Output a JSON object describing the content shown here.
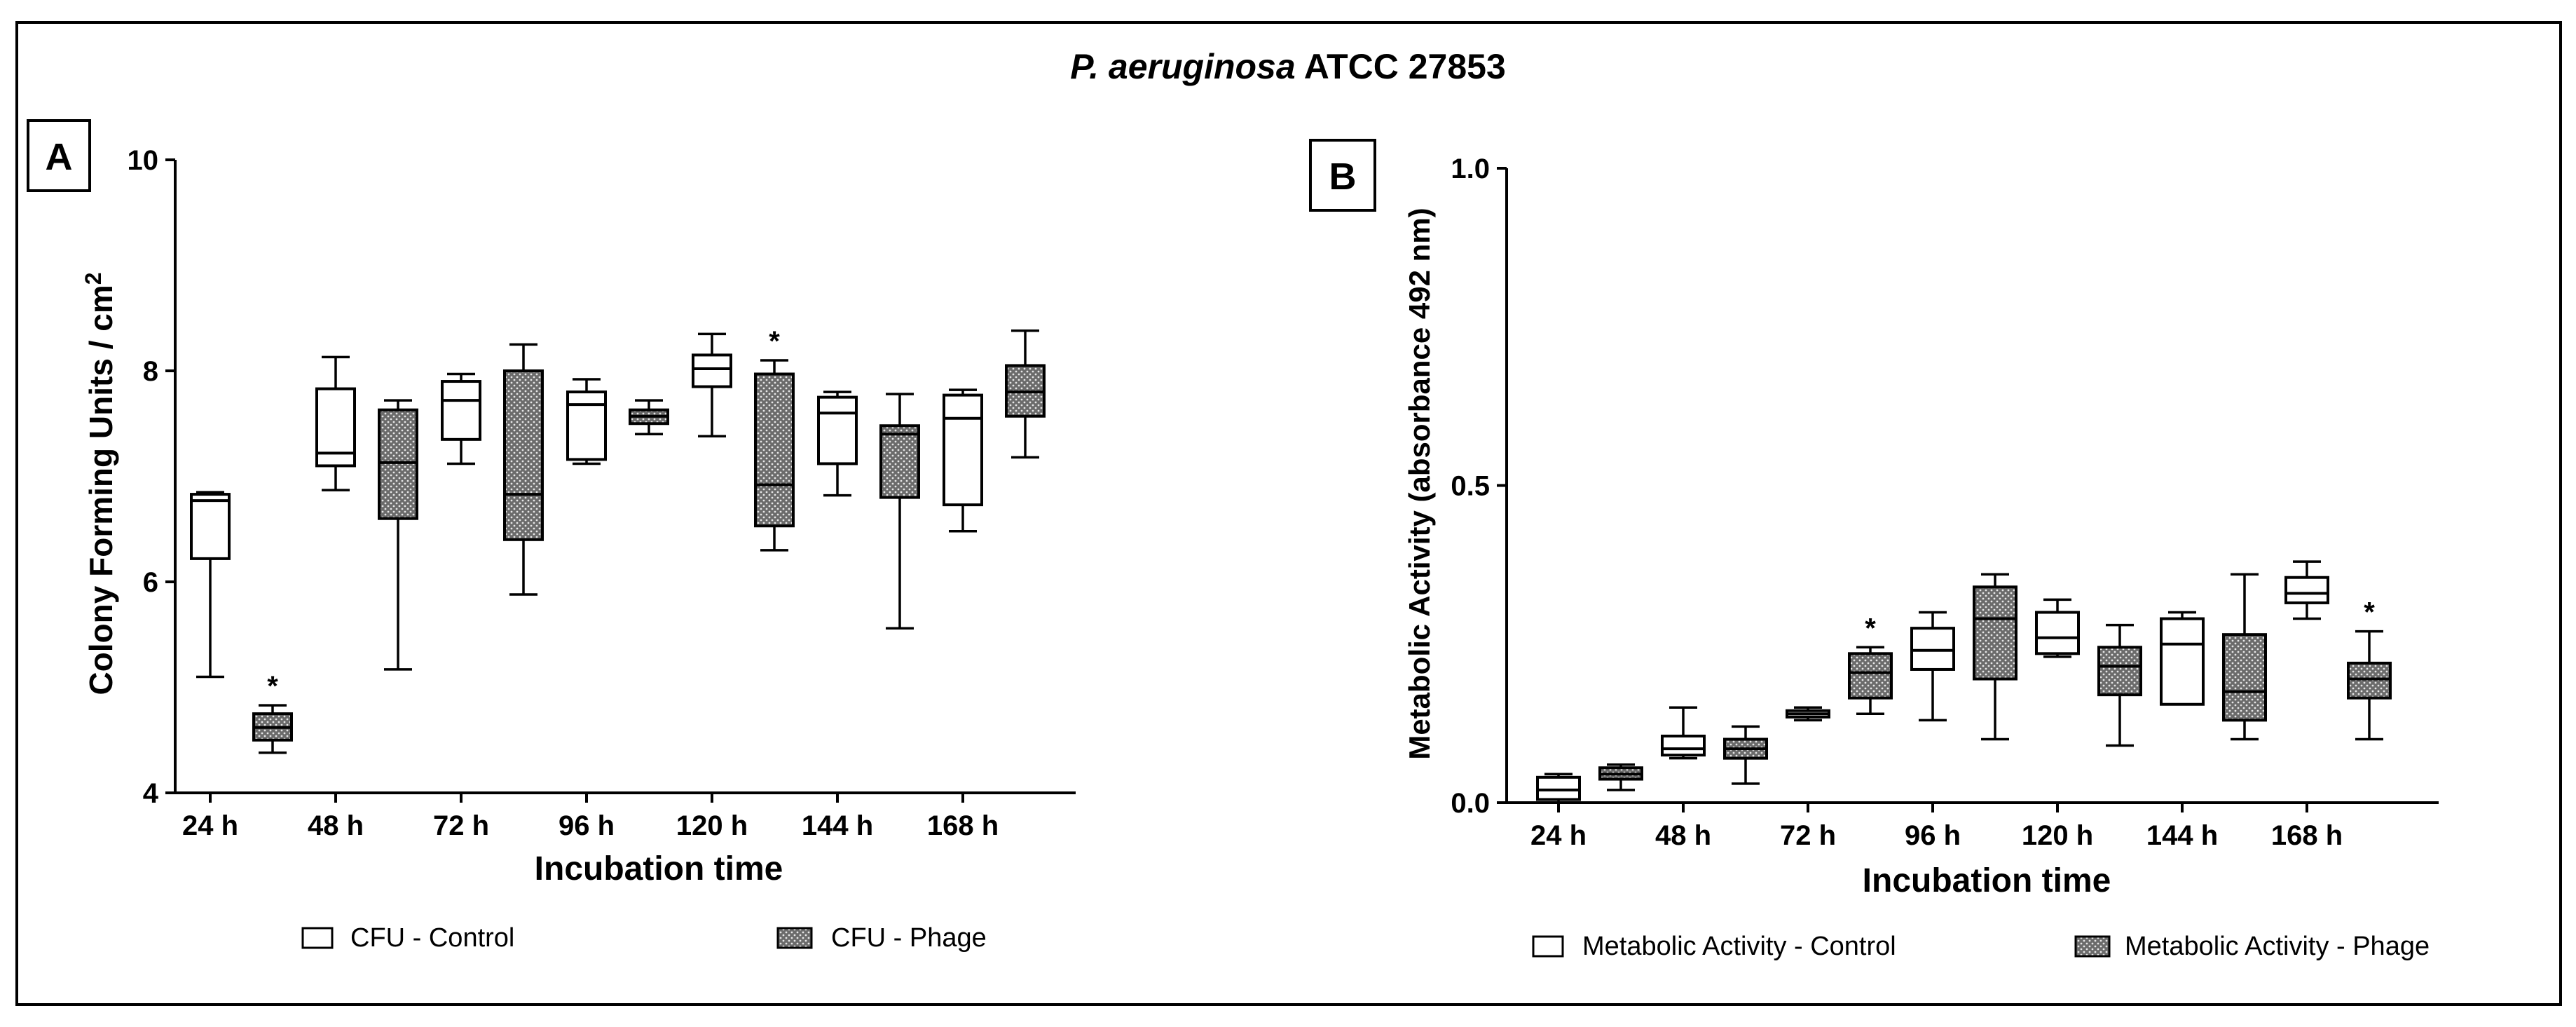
{
  "figure": {
    "title_italic": "P. aeruginosa",
    "title_rest": " ATCC 27853"
  },
  "colors": {
    "frame": "#000000",
    "control_fill": "#ffffff",
    "phage_fill": "#6b6b6b",
    "phage_dots": "#e6e6e6"
  },
  "chart_data": [
    {
      "type": "boxplot",
      "panel_label": "A",
      "title": "P. aeruginosa ATCC 27853",
      "xlabel": "Incubation time",
      "ylabel": "Colony Forming Units / cm",
      "ylabel_superscript": "2",
      "ylim": [
        4,
        10
      ],
      "yticks": [
        4,
        6,
        8,
        10
      ],
      "categories": [
        "24 h",
        "48 h",
        "72 h",
        "96 h",
        "120 h",
        "144 h",
        "168 h"
      ],
      "legend": [
        "CFU - Control",
        "CFU - Phage"
      ],
      "series": [
        {
          "name": "CFU - Control",
          "style": "open",
          "boxes": [
            {
              "min": 5.1,
              "q1": 6.22,
              "median": 6.77,
              "q3": 6.83,
              "max": 6.85
            },
            {
              "min": 6.87,
              "q1": 7.1,
              "median": 7.22,
              "q3": 7.83,
              "max": 8.13
            },
            {
              "min": 7.12,
              "q1": 7.35,
              "median": 7.72,
              "q3": 7.9,
              "max": 7.97
            },
            {
              "min": 7.12,
              "q1": 7.16,
              "median": 7.68,
              "q3": 7.8,
              "max": 7.92
            },
            {
              "min": 7.38,
              "q1": 7.85,
              "median": 8.02,
              "q3": 8.15,
              "max": 8.35
            },
            {
              "min": 6.82,
              "q1": 7.12,
              "median": 7.6,
              "q3": 7.75,
              "max": 7.8
            },
            {
              "min": 6.48,
              "q1": 6.73,
              "median": 7.55,
              "q3": 7.77,
              "max": 7.82
            }
          ]
        },
        {
          "name": "CFU - Phage",
          "style": "hatched",
          "boxes": [
            {
              "min": 4.38,
              "q1": 4.5,
              "median": 4.62,
              "q3": 4.75,
              "max": 4.83,
              "significance": "*"
            },
            {
              "min": 5.17,
              "q1": 6.6,
              "median": 7.13,
              "q3": 7.63,
              "max": 7.72
            },
            {
              "min": 5.88,
              "q1": 6.4,
              "median": 6.83,
              "q3": 8.0,
              "max": 8.25
            },
            {
              "min": 7.4,
              "q1": 7.5,
              "median": 7.57,
              "q3": 7.63,
              "max": 7.72
            },
            {
              "min": 6.3,
              "q1": 6.53,
              "median": 6.92,
              "q3": 7.97,
              "max": 8.1,
              "significance": "*"
            },
            {
              "min": 5.56,
              "q1": 6.8,
              "median": 7.4,
              "q3": 7.48,
              "max": 7.78
            },
            {
              "min": 7.18,
              "q1": 7.57,
              "median": 7.8,
              "q3": 8.05,
              "max": 8.38
            }
          ]
        }
      ]
    },
    {
      "type": "boxplot",
      "panel_label": "B",
      "xlabel": "Incubation time",
      "ylabel": "Metabolic Activity (absorbance 492 nm)",
      "ylim": [
        0.0,
        1.0
      ],
      "yticks": [
        0.0,
        0.5,
        1.0
      ],
      "ytick_labels": [
        "0.0",
        "0.5",
        "1.0"
      ],
      "categories": [
        "24 h",
        "48 h",
        "72 h",
        "96 h",
        "120 h",
        "144 h",
        "168 h"
      ],
      "legend": [
        "Metabolic Activity - Control",
        "Metabolic Activity - Phage"
      ],
      "series": [
        {
          "name": "Metabolic Activity - Control",
          "style": "open",
          "boxes": [
            {
              "min": 0.0,
              "q1": 0.005,
              "median": 0.02,
              "q3": 0.04,
              "max": 0.045
            },
            {
              "min": 0.07,
              "q1": 0.075,
              "median": 0.085,
              "q3": 0.105,
              "max": 0.15
            },
            {
              "min": 0.13,
              "q1": 0.135,
              "median": 0.14,
              "q3": 0.145,
              "max": 0.15
            },
            {
              "min": 0.13,
              "q1": 0.21,
              "median": 0.24,
              "q3": 0.275,
              "max": 0.3
            },
            {
              "min": 0.23,
              "q1": 0.235,
              "median": 0.26,
              "q3": 0.3,
              "max": 0.32
            },
            {
              "min": 0.155,
              "q1": 0.155,
              "median": 0.25,
              "q3": 0.29,
              "max": 0.3
            },
            {
              "min": 0.29,
              "q1": 0.315,
              "median": 0.33,
              "q3": 0.355,
              "max": 0.38
            }
          ]
        },
        {
          "name": "Metabolic Activity - Phage",
          "style": "hatched",
          "boxes": [
            {
              "min": 0.02,
              "q1": 0.037,
              "median": 0.045,
              "q3": 0.055,
              "max": 0.06
            },
            {
              "min": 0.03,
              "q1": 0.07,
              "median": 0.085,
              "q3": 0.1,
              "max": 0.12
            },
            {
              "min": 0.14,
              "q1": 0.165,
              "median": 0.205,
              "q3": 0.235,
              "max": 0.245,
              "significance": "*"
            },
            {
              "min": 0.1,
              "q1": 0.195,
              "median": 0.29,
              "q3": 0.34,
              "max": 0.36
            },
            {
              "min": 0.09,
              "q1": 0.17,
              "median": 0.215,
              "q3": 0.245,
              "max": 0.28
            },
            {
              "min": 0.1,
              "q1": 0.13,
              "median": 0.175,
              "q3": 0.265,
              "max": 0.36
            },
            {
              "min": 0.1,
              "q1": 0.165,
              "median": 0.195,
              "q3": 0.22,
              "max": 0.27,
              "significance": "*"
            }
          ]
        }
      ]
    }
  ]
}
